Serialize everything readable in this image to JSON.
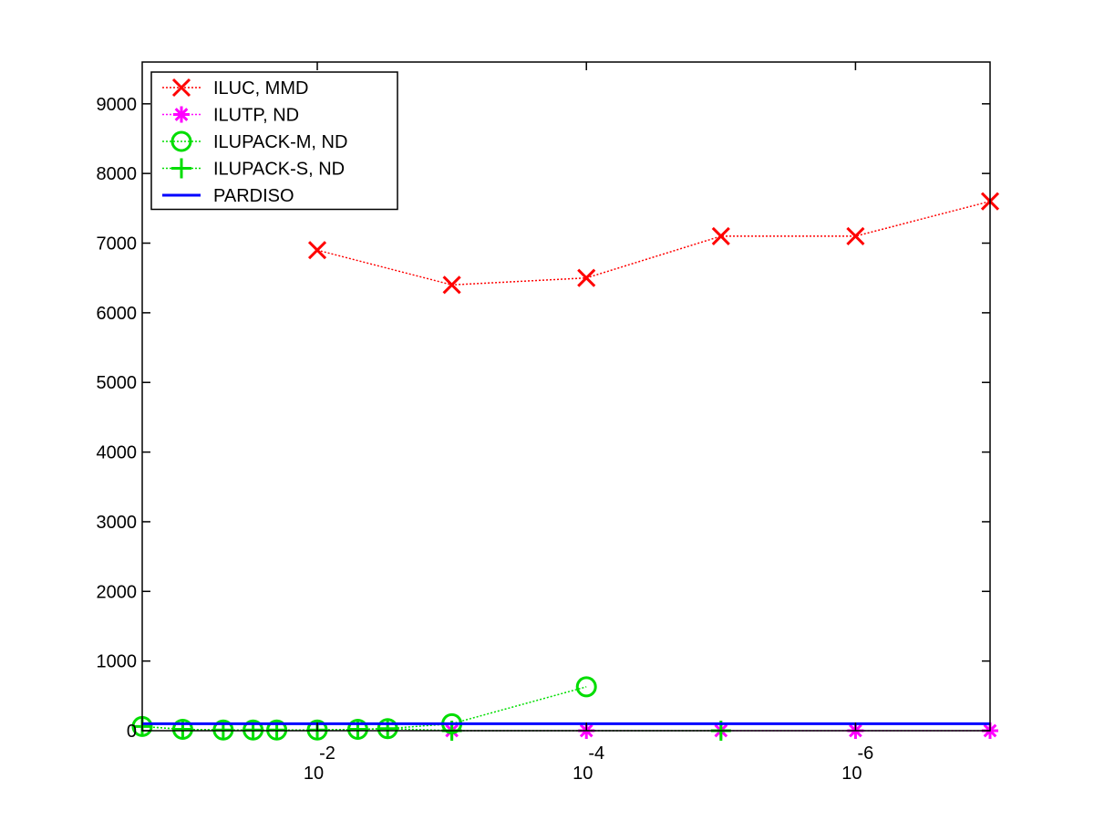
{
  "chart_data": {
    "type": "line",
    "title": "",
    "xlabel": "",
    "ylabel": "",
    "x_scale": "log10-reversed",
    "xlim": [
      0.2,
      1e-07
    ],
    "ylim": [
      0,
      9600
    ],
    "grid": false,
    "legend_position": "top-left",
    "y_ticks": [
      "0",
      "1000",
      "2000",
      "3000",
      "4000",
      "5000",
      "6000",
      "7000",
      "8000",
      "9000"
    ],
    "x_ticks": [
      {
        "base": "10",
        "exp": "-2",
        "value": 0.01
      },
      {
        "base": "10",
        "exp": "-4",
        "value": 0.0001
      },
      {
        "base": "10",
        "exp": "-6",
        "value": 1e-06
      }
    ],
    "series": [
      {
        "name": "ILUC, MMD",
        "color": "#ff0000",
        "marker": "x",
        "line": "dotted",
        "x": [
          0.01,
          0.001,
          0.0001,
          1e-05,
          1e-06,
          1e-07
        ],
        "y": [
          6900,
          6400,
          6500,
          7100,
          7100,
          7600
        ]
      },
      {
        "name": "ILUTP,  ND",
        "color": "#ff00ff",
        "marker": "asterisk",
        "line": "dotted",
        "x": [
          0.001,
          0.0001,
          1e-05,
          1e-06,
          1e-07
        ],
        "y": [
          0,
          0,
          0,
          0,
          0
        ]
      },
      {
        "name": "ILUPACK-M, ND",
        "color": "#00dd00",
        "marker": "circle",
        "line": "dotted",
        "x": [
          0.2,
          0.1,
          0.05,
          0.03,
          0.02,
          0.01,
          0.005,
          0.003,
          0.001,
          0.0001
        ],
        "y": [
          60,
          20,
          10,
          10,
          10,
          10,
          20,
          30,
          100,
          630
        ]
      },
      {
        "name": "ILUPACK-S, ND",
        "color": "#00dd00",
        "marker": "plus",
        "line": "dotted",
        "x": [
          0.2,
          0.1,
          0.05,
          0.03,
          0.02,
          0.01,
          0.005,
          0.003,
          0.001,
          1e-05
        ],
        "y": [
          60,
          20,
          10,
          10,
          10,
          10,
          20,
          30,
          0,
          0
        ]
      },
      {
        "name": "PARDISO",
        "color": "#0000ff",
        "marker": "none",
        "line": "solid",
        "x": [
          0.2,
          1e-07
        ],
        "y": [
          100,
          100
        ]
      }
    ]
  }
}
